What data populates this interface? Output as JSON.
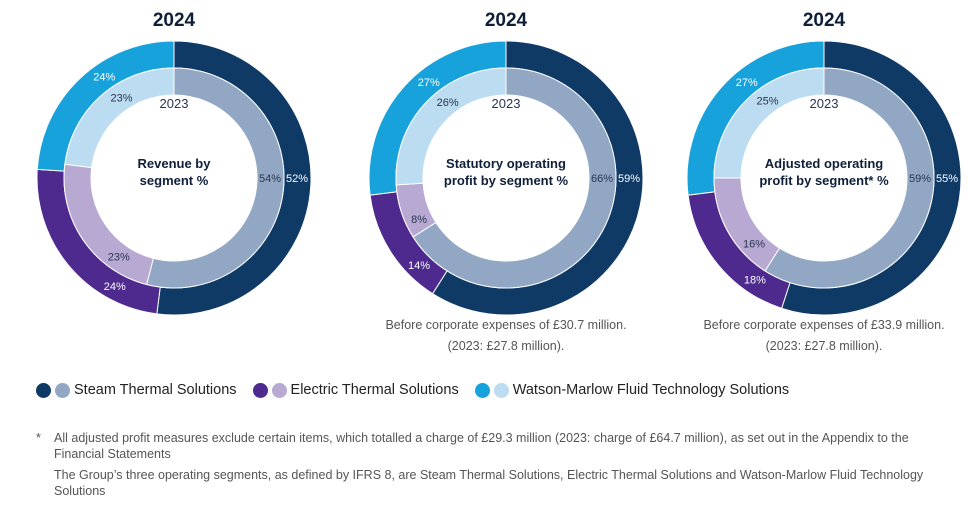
{
  "colors": {
    "steam_2024": "#0f3a66",
    "steam_2023": "#91a7c4",
    "electric_2024": "#4e2a8e",
    "electric_2023": "#b8a9d3",
    "watson_2024": "#17a2dc",
    "watson_2023": "#bcdcf2"
  },
  "chart_data": [
    {
      "type": "pie",
      "title": "2024",
      "inner_year_label": "2023",
      "center_label": [
        "Revenue by",
        "segment %"
      ],
      "segments": [
        "Steam Thermal Solutions",
        "Electric Thermal Solutions",
        "Watson-Marlow Fluid Technology Solutions"
      ],
      "series": [
        {
          "name": "2024",
          "ring": "outer",
          "values": [
            52,
            24,
            24
          ],
          "labels": [
            "52%",
            "24%",
            "24%"
          ]
        },
        {
          "name": "2023",
          "ring": "inner",
          "values": [
            54,
            23,
            23
          ],
          "labels": [
            "54%",
            "23%",
            "23%"
          ]
        }
      ],
      "note": ""
    },
    {
      "type": "pie",
      "title": "2024",
      "inner_year_label": "2023",
      "center_label": [
        "Statutory operating",
        "profit by segment %"
      ],
      "segments": [
        "Steam Thermal Solutions",
        "Electric Thermal Solutions",
        "Watson-Marlow Fluid Technology Solutions"
      ],
      "series": [
        {
          "name": "2024",
          "ring": "outer",
          "values": [
            59,
            14,
            27
          ],
          "labels": [
            "59%",
            "14%",
            "27%"
          ]
        },
        {
          "name": "2023",
          "ring": "inner",
          "values": [
            66,
            8,
            26
          ],
          "labels": [
            "66%",
            "8%",
            "26%"
          ]
        }
      ],
      "note": [
        "Before corporate expenses of £30.7 million.",
        "(2023: £27.8 million)."
      ]
    },
    {
      "type": "pie",
      "title": "2024",
      "inner_year_label": "2023",
      "center_label": [
        "Adjusted operating",
        "profit by segment* %"
      ],
      "segments": [
        "Steam Thermal Solutions",
        "Electric Thermal Solutions",
        "Watson-Marlow Fluid Technology Solutions"
      ],
      "series": [
        {
          "name": "2024",
          "ring": "outer",
          "values": [
            55,
            18,
            27
          ],
          "labels": [
            "55%",
            "18%",
            "27%"
          ]
        },
        {
          "name": "2023",
          "ring": "inner",
          "values": [
            59,
            16,
            25
          ],
          "labels": [
            "59%",
            "16%",
            "25%"
          ]
        }
      ],
      "note": [
        "Before corporate expenses of £33.9 million.",
        "(2023: £27.8 million)."
      ]
    }
  ],
  "legend": [
    {
      "label": "Steam Thermal Solutions",
      "color_keys": [
        "steam_2024",
        "steam_2023"
      ]
    },
    {
      "label": "Electric Thermal Solutions",
      "color_keys": [
        "electric_2024",
        "electric_2023"
      ]
    },
    {
      "label": "Watson-Marlow Fluid Technology Solutions",
      "color_keys": [
        "watson_2024",
        "watson_2023"
      ]
    }
  ],
  "footnotes": {
    "star": "*",
    "adjusted": "All adjusted profit measures exclude certain items, which totalled a charge of £29.3 million (2023: charge of £64.7 million), as set out in the Appendix to the Financial Statements",
    "segments": "The Group’s three operating segments, as defined by IFRS 8, are Steam Thermal Solutions, Electric Thermal Solutions and Watson-Marlow Fluid Technology Solutions"
  }
}
